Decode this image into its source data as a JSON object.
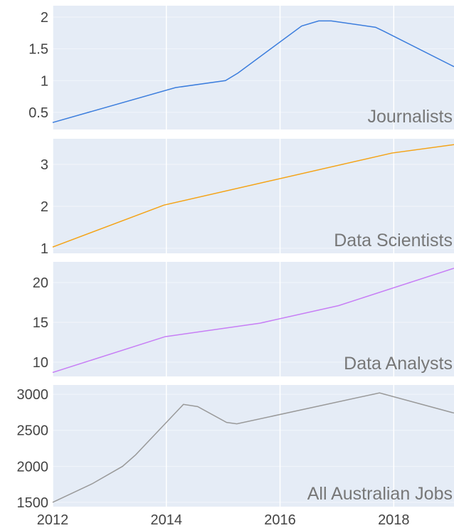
{
  "chart_data": [
    {
      "type": "line",
      "annotation": "Journalists",
      "color": "#3b7ddd",
      "x": [
        2012,
        2014.16,
        2015.04,
        2015.26,
        2016.38,
        2016.68,
        2016.9,
        2017.68,
        2017.82,
        2019.06
      ],
      "values": [
        0.34,
        0.89,
        1.0,
        1.12,
        1.86,
        1.94,
        1.94,
        1.84,
        1.78,
        1.22
      ],
      "xlim": [
        2012,
        2019.06
      ],
      "ylim": [
        0.23,
        2.18
      ],
      "yticks": [
        0.5,
        1,
        1.5,
        2
      ],
      "grid": true
    },
    {
      "type": "line",
      "annotation": "Data Scientists",
      "color": "#f4a316",
      "x": [
        2012,
        2013.96,
        2017.97,
        2019.06
      ],
      "values": [
        1.03,
        2.03,
        3.27,
        3.47
      ],
      "xlim": [
        2012,
        2019.06
      ],
      "ylim": [
        0.88,
        3.61
      ],
      "yticks": [
        1,
        2,
        3
      ],
      "grid": true
    },
    {
      "type": "line",
      "annotation": "Data Analysts",
      "color": "#c77ef5",
      "x": [
        2012,
        2013.98,
        2015.65,
        2017.03,
        2019.06
      ],
      "values": [
        8.7,
        13.2,
        14.9,
        17.1,
        21.8
      ],
      "xlim": [
        2012,
        2019.06
      ],
      "ylim": [
        8.2,
        22.6
      ],
      "yticks": [
        10,
        15,
        20
      ],
      "grid": true
    },
    {
      "type": "line",
      "annotation": "All Australian Jobs",
      "color": "#999999",
      "x": [
        2012,
        2012.7,
        2013.23,
        2013.46,
        2014.3,
        2014.55,
        2015.06,
        2015.24,
        2016.35,
        2017.75,
        2019.06
      ],
      "values": [
        1500,
        1760,
        2000,
        2160,
        2860,
        2830,
        2610,
        2590,
        2780,
        3020,
        2740
      ],
      "xlim": [
        2012,
        2019.06
      ],
      "ylim": [
        1440,
        3130
      ],
      "yticks": [
        1500,
        2000,
        2500,
        3000
      ],
      "xticks": [
        2012,
        2014,
        2016,
        2018
      ],
      "grid": true
    }
  ]
}
